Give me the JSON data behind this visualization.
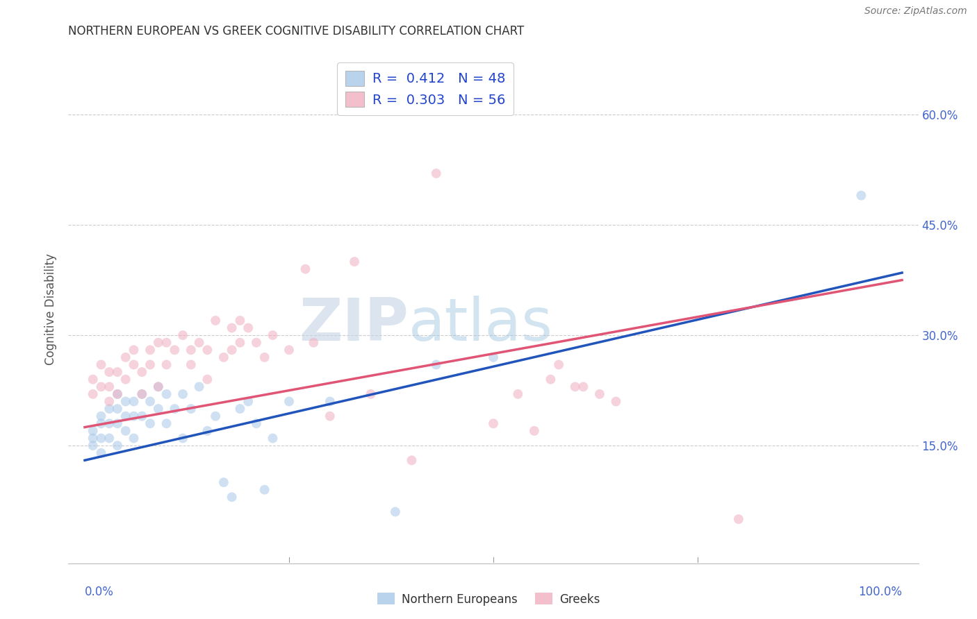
{
  "title": "NORTHERN EUROPEAN VS GREEK COGNITIVE DISABILITY CORRELATION CHART",
  "source": "Source: ZipAtlas.com",
  "ylabel": "Cognitive Disability",
  "watermark_zip": "ZIP",
  "watermark_atlas": "atlas",
  "legend_line1": "R =  0.412   N = 48",
  "legend_line2": "R =  0.303   N = 56",
  "legend_label_blue": "Northern Europeans",
  "legend_label_pink": "Greeks",
  "blue_color": "#a8c8e8",
  "pink_color": "#f0b0c0",
  "blue_line_color": "#2255bb",
  "pink_line_color": "#e05575",
  "xlim": [
    -0.02,
    1.02
  ],
  "ylim": [
    -0.01,
    0.68
  ],
  "yticks": [
    0.15,
    0.3,
    0.45,
    0.6
  ],
  "ytick_labels": [
    "15.0%",
    "30.0%",
    "45.0%",
    "60.0%"
  ],
  "xtick_left_label": "0.0%",
  "xtick_right_label": "100.0%",
  "blue_scatter_x": [
    0.01,
    0.01,
    0.01,
    0.02,
    0.02,
    0.02,
    0.02,
    0.03,
    0.03,
    0.03,
    0.04,
    0.04,
    0.04,
    0.04,
    0.05,
    0.05,
    0.05,
    0.06,
    0.06,
    0.06,
    0.07,
    0.07,
    0.08,
    0.08,
    0.09,
    0.09,
    0.1,
    0.1,
    0.11,
    0.12,
    0.12,
    0.13,
    0.14,
    0.15,
    0.16,
    0.17,
    0.18,
    0.19,
    0.2,
    0.21,
    0.22,
    0.23,
    0.25,
    0.3,
    0.38,
    0.43,
    0.5,
    0.95
  ],
  "blue_scatter_y": [
    0.17,
    0.16,
    0.15,
    0.19,
    0.18,
    0.16,
    0.14,
    0.2,
    0.18,
    0.16,
    0.22,
    0.2,
    0.18,
    0.15,
    0.21,
    0.19,
    0.17,
    0.21,
    0.19,
    0.16,
    0.22,
    0.19,
    0.21,
    0.18,
    0.23,
    0.2,
    0.22,
    0.18,
    0.2,
    0.22,
    0.16,
    0.2,
    0.23,
    0.17,
    0.19,
    0.1,
    0.08,
    0.2,
    0.21,
    0.18,
    0.09,
    0.16,
    0.21,
    0.21,
    0.06,
    0.26,
    0.27,
    0.49
  ],
  "pink_scatter_x": [
    0.01,
    0.01,
    0.02,
    0.02,
    0.03,
    0.03,
    0.03,
    0.04,
    0.04,
    0.05,
    0.05,
    0.06,
    0.06,
    0.07,
    0.07,
    0.08,
    0.08,
    0.09,
    0.09,
    0.1,
    0.1,
    0.11,
    0.12,
    0.13,
    0.13,
    0.14,
    0.15,
    0.15,
    0.16,
    0.17,
    0.18,
    0.18,
    0.19,
    0.19,
    0.2,
    0.21,
    0.22,
    0.23,
    0.25,
    0.27,
    0.28,
    0.3,
    0.33,
    0.35,
    0.4,
    0.43,
    0.5,
    0.53,
    0.55,
    0.57,
    0.58,
    0.6,
    0.61,
    0.63,
    0.65,
    0.8
  ],
  "pink_scatter_y": [
    0.22,
    0.24,
    0.26,
    0.23,
    0.25,
    0.23,
    0.21,
    0.25,
    0.22,
    0.27,
    0.24,
    0.28,
    0.26,
    0.25,
    0.22,
    0.28,
    0.26,
    0.29,
    0.23,
    0.29,
    0.26,
    0.28,
    0.3,
    0.28,
    0.26,
    0.29,
    0.28,
    0.24,
    0.32,
    0.27,
    0.31,
    0.28,
    0.32,
    0.29,
    0.31,
    0.29,
    0.27,
    0.3,
    0.28,
    0.39,
    0.29,
    0.19,
    0.4,
    0.22,
    0.13,
    0.52,
    0.18,
    0.22,
    0.17,
    0.24,
    0.26,
    0.23,
    0.23,
    0.22,
    0.21,
    0.05
  ],
  "blue_line_x0": 0.0,
  "blue_line_x1": 1.0,
  "blue_line_y0": 0.13,
  "blue_line_y1": 0.385,
  "pink_line_x0": 0.0,
  "pink_line_x1": 1.0,
  "pink_line_y0": 0.175,
  "pink_line_y1": 0.375,
  "background_color": "#ffffff",
  "grid_color": "#cccccc",
  "title_fontsize": 12,
  "source_fontsize": 10,
  "tick_fontsize": 12,
  "ylabel_fontsize": 12,
  "legend_fontsize": 14,
  "marker_size": 100,
  "marker_alpha": 0.55
}
